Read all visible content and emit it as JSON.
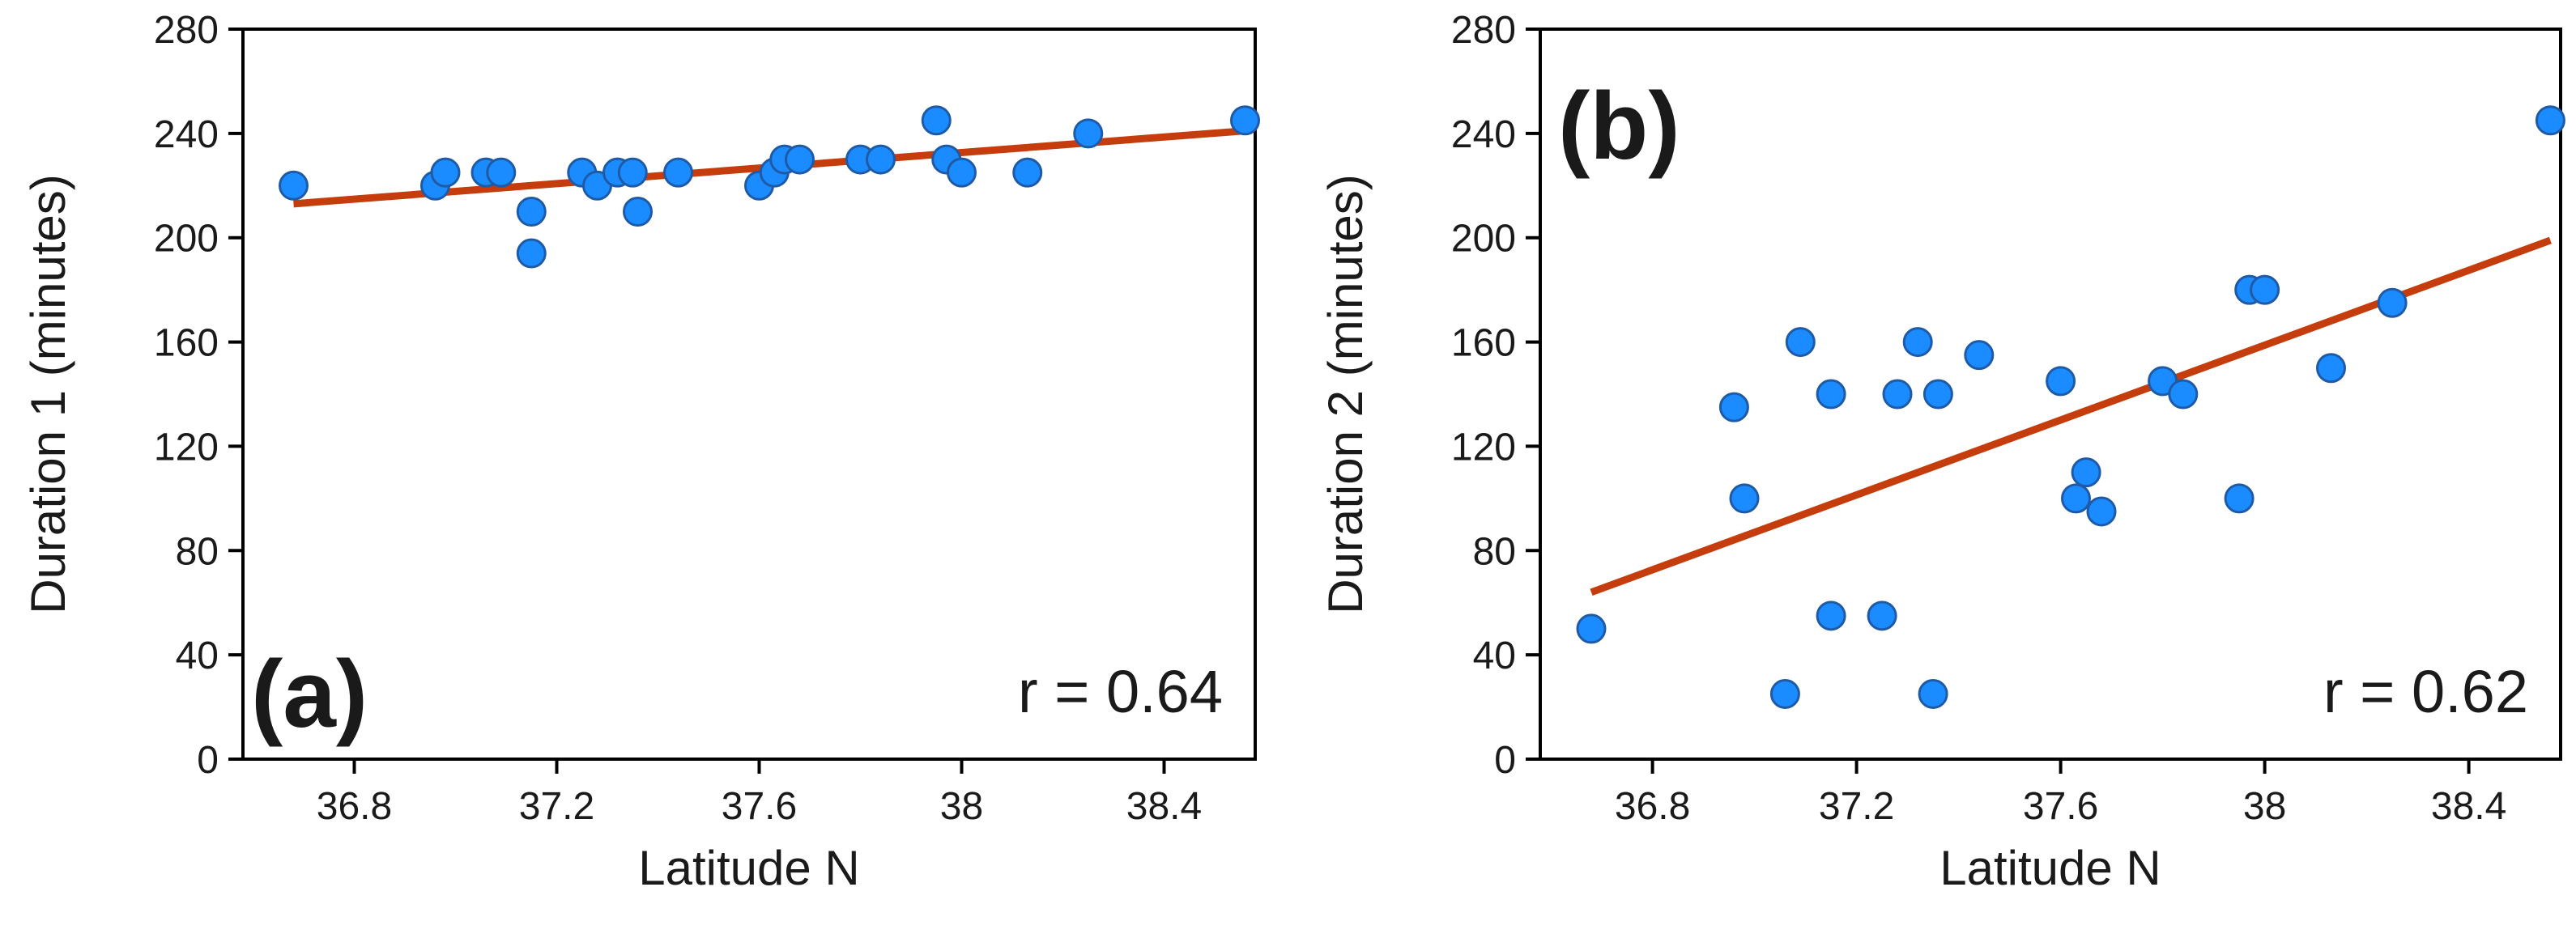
{
  "chart_data": [
    {
      "type": "scatter",
      "panel_label": "(a)",
      "xlabel": "Latitude N",
      "ylabel": "Duration 1 (minutes)",
      "xlim": [
        36.58,
        38.58
      ],
      "ylim": [
        0,
        280
      ],
      "xticks": [
        36.8,
        37.2,
        37.6,
        38,
        38.4
      ],
      "xtick_labels": [
        "36.8",
        "37.2",
        "37.6",
        "38",
        "38.4"
      ],
      "yticks": [
        0,
        40,
        80,
        120,
        160,
        200,
        240,
        280
      ],
      "ytick_labels": [
        "0",
        "40",
        "80",
        "120",
        "160",
        "200",
        "240",
        "280"
      ],
      "annotation": "r = 0.64",
      "trend_line": {
        "x": [
          36.68,
          38.56
        ],
        "y": [
          213,
          241
        ]
      },
      "points": [
        {
          "x": 36.68,
          "y": 220
        },
        {
          "x": 36.96,
          "y": 220
        },
        {
          "x": 36.98,
          "y": 225
        },
        {
          "x": 37.06,
          "y": 225
        },
        {
          "x": 37.09,
          "y": 225
        },
        {
          "x": 37.15,
          "y": 210
        },
        {
          "x": 37.15,
          "y": 194
        },
        {
          "x": 37.25,
          "y": 225
        },
        {
          "x": 37.28,
          "y": 220
        },
        {
          "x": 37.32,
          "y": 225
        },
        {
          "x": 37.35,
          "y": 225
        },
        {
          "x": 37.36,
          "y": 210
        },
        {
          "x": 37.44,
          "y": 225
        },
        {
          "x": 37.6,
          "y": 220
        },
        {
          "x": 37.63,
          "y": 225
        },
        {
          "x": 37.65,
          "y": 230
        },
        {
          "x": 37.68,
          "y": 230
        },
        {
          "x": 37.8,
          "y": 230
        },
        {
          "x": 37.84,
          "y": 230
        },
        {
          "x": 37.95,
          "y": 245
        },
        {
          "x": 37.97,
          "y": 230
        },
        {
          "x": 38.0,
          "y": 225
        },
        {
          "x": 38.13,
          "y": 225
        },
        {
          "x": 38.25,
          "y": 240
        },
        {
          "x": 38.56,
          "y": 245
        }
      ]
    },
    {
      "type": "scatter",
      "panel_label": "(b)",
      "xlabel": "Latitude N",
      "ylabel": "Duration 2 (minutes)",
      "xlim": [
        36.58,
        38.58
      ],
      "ylim": [
        0,
        280
      ],
      "xticks": [
        36.8,
        37.2,
        37.6,
        38,
        38.4
      ],
      "xtick_labels": [
        "36.8",
        "37.2",
        "37.6",
        "38",
        "38.4"
      ],
      "yticks": [
        0,
        40,
        80,
        120,
        160,
        200,
        240,
        280
      ],
      "ytick_labels": [
        "0",
        "40",
        "80",
        "120",
        "160",
        "200",
        "240",
        "280"
      ],
      "annotation": "r = 0.62",
      "trend_line": {
        "x": [
          36.68,
          38.56
        ],
        "y": [
          64,
          199
        ]
      },
      "points": [
        {
          "x": 36.68,
          "y": 50
        },
        {
          "x": 36.96,
          "y": 135
        },
        {
          "x": 36.98,
          "y": 100
        },
        {
          "x": 37.06,
          "y": 25
        },
        {
          "x": 37.09,
          "y": 160
        },
        {
          "x": 37.15,
          "y": 55
        },
        {
          "x": 37.15,
          "y": 140
        },
        {
          "x": 37.25,
          "y": 55
        },
        {
          "x": 37.28,
          "y": 140
        },
        {
          "x": 37.32,
          "y": 160
        },
        {
          "x": 37.35,
          "y": 25
        },
        {
          "x": 37.36,
          "y": 140
        },
        {
          "x": 37.44,
          "y": 155
        },
        {
          "x": 37.6,
          "y": 145
        },
        {
          "x": 37.63,
          "y": 100
        },
        {
          "x": 37.65,
          "y": 110
        },
        {
          "x": 37.68,
          "y": 95
        },
        {
          "x": 37.8,
          "y": 145
        },
        {
          "x": 37.84,
          "y": 140
        },
        {
          "x": 37.95,
          "y": 100
        },
        {
          "x": 37.97,
          "y": 180
        },
        {
          "x": 38.0,
          "y": 180
        },
        {
          "x": 38.13,
          "y": 150
        },
        {
          "x": 38.25,
          "y": 175
        },
        {
          "x": 38.56,
          "y": 245
        }
      ]
    }
  ]
}
